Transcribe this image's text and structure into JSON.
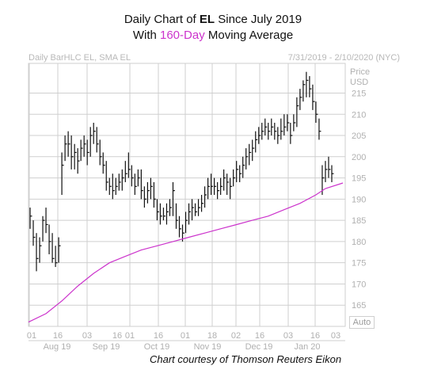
{
  "title": {
    "line1_prefix": "Daily Chart of ",
    "ticker": "EL",
    "line1_suffix": " Since July 2019",
    "line2_prefix": "With ",
    "line2_highlight": "160-Day",
    "line2_suffix": " Moving Average"
  },
  "header": {
    "left": "Daily BarHLC EL, SMA EL",
    "right": "7/31/2019 - 2/10/2020 (NYC)"
  },
  "axis": {
    "price_label": "Price",
    "currency_label": "USD",
    "auto_button": "Auto"
  },
  "credit": "Chart courtesy of Thomson Reuters Eikon",
  "colors": {
    "bars": "#111111",
    "sma": "#cc33cc",
    "grid": "#cfcfcf",
    "axis_text": "#b0b0b0"
  },
  "chart_data": {
    "type": "line",
    "title": "Daily Chart of EL Since July 2019 With 160-Day Moving Average",
    "bar_type": "BarHLC",
    "y_axis_side": "right",
    "ylim": [
      160,
      222
    ],
    "yticks": [
      165,
      170,
      175,
      180,
      185,
      190,
      195,
      200,
      205,
      210,
      215
    ],
    "x_day_ticks": [
      "01",
      "16",
      "03",
      "16",
      "01",
      "16",
      "01",
      "18",
      "02",
      "16",
      "03",
      "16",
      "03"
    ],
    "x_month_labels": [
      "Aug 19",
      "Sep 19",
      "Oct 19",
      "Nov 19",
      "Dec 19",
      "Jan 20"
    ],
    "grid": true,
    "series": [
      {
        "name": "EL",
        "kind": "hlc_bars",
        "values": [
          {
            "h": 188,
            "l": 183,
            "c": 186
          },
          {
            "h": 185,
            "l": 179,
            "c": 181
          },
          {
            "h": 182,
            "l": 173,
            "c": 176
          },
          {
            "h": 181,
            "l": 175,
            "c": 179
          },
          {
            "h": 186,
            "l": 180,
            "c": 185
          },
          {
            "h": 188,
            "l": 182,
            "c": 184
          },
          {
            "h": 184,
            "l": 177,
            "c": 180
          },
          {
            "h": 182,
            "l": 175,
            "c": 176
          },
          {
            "h": 179,
            "l": 174,
            "c": 175
          },
          {
            "h": 181,
            "l": 175,
            "c": 179
          },
          {
            "h": 201,
            "l": 191,
            "c": 198
          },
          {
            "h": 205,
            "l": 199,
            "c": 203
          },
          {
            "h": 206,
            "l": 200,
            "c": 203
          },
          {
            "h": 205,
            "l": 197,
            "c": 200
          },
          {
            "h": 203,
            "l": 197,
            "c": 201
          },
          {
            "h": 202,
            "l": 196,
            "c": 199
          },
          {
            "h": 204,
            "l": 199,
            "c": 202
          },
          {
            "h": 205,
            "l": 200,
            "c": 203
          },
          {
            "h": 204,
            "l": 198,
            "c": 201
          },
          {
            "h": 207,
            "l": 200,
            "c": 205
          },
          {
            "h": 208,
            "l": 203,
            "c": 206
          },
          {
            "h": 207,
            "l": 201,
            "c": 203
          },
          {
            "h": 204,
            "l": 198,
            "c": 200
          },
          {
            "h": 201,
            "l": 196,
            "c": 198
          },
          {
            "h": 199,
            "l": 192,
            "c": 194
          },
          {
            "h": 195,
            "l": 191,
            "c": 193
          },
          {
            "h": 196,
            "l": 190,
            "c": 192
          },
          {
            "h": 195,
            "l": 191,
            "c": 193
          },
          {
            "h": 196,
            "l": 192,
            "c": 194
          },
          {
            "h": 197,
            "l": 192,
            "c": 195
          },
          {
            "h": 199,
            "l": 194,
            "c": 196
          },
          {
            "h": 201,
            "l": 195,
            "c": 197
          },
          {
            "h": 198,
            "l": 193,
            "c": 195
          },
          {
            "h": 196,
            "l": 191,
            "c": 193
          },
          {
            "h": 197,
            "l": 193,
            "c": 195
          },
          {
            "h": 197,
            "l": 190,
            "c": 192
          },
          {
            "h": 193,
            "l": 188,
            "c": 190
          },
          {
            "h": 194,
            "l": 189,
            "c": 192
          },
          {
            "h": 195,
            "l": 190,
            "c": 193
          },
          {
            "h": 194,
            "l": 188,
            "c": 190
          },
          {
            "h": 190,
            "l": 185,
            "c": 187
          },
          {
            "h": 189,
            "l": 184,
            "c": 186
          },
          {
            "h": 188,
            "l": 185,
            "c": 186
          },
          {
            "h": 189,
            "l": 184,
            "c": 187
          },
          {
            "h": 190,
            "l": 186,
            "c": 188
          },
          {
            "h": 194,
            "l": 186,
            "c": 192
          },
          {
            "h": 189,
            "l": 183,
            "c": 185
          },
          {
            "h": 186,
            "l": 181,
            "c": 183
          },
          {
            "h": 184,
            "l": 180,
            "c": 182
          },
          {
            "h": 187,
            "l": 182,
            "c": 185
          },
          {
            "h": 189,
            "l": 184,
            "c": 187
          },
          {
            "h": 190,
            "l": 185,
            "c": 188
          },
          {
            "h": 189,
            "l": 186,
            "c": 187
          },
          {
            "h": 190,
            "l": 186,
            "c": 188
          },
          {
            "h": 191,
            "l": 187,
            "c": 189
          },
          {
            "h": 193,
            "l": 188,
            "c": 191
          },
          {
            "h": 195,
            "l": 190,
            "c": 193
          },
          {
            "h": 196,
            "l": 191,
            "c": 193
          },
          {
            "h": 195,
            "l": 191,
            "c": 193
          },
          {
            "h": 194,
            "l": 190,
            "c": 192
          },
          {
            "h": 195,
            "l": 191,
            "c": 193
          },
          {
            "h": 197,
            "l": 192,
            "c": 195
          },
          {
            "h": 196,
            "l": 191,
            "c": 194
          },
          {
            "h": 195,
            "l": 190,
            "c": 193
          },
          {
            "h": 197,
            "l": 193,
            "c": 195
          },
          {
            "h": 199,
            "l": 194,
            "c": 197
          },
          {
            "h": 198,
            "l": 194,
            "c": 196
          },
          {
            "h": 200,
            "l": 195,
            "c": 198
          },
          {
            "h": 202,
            "l": 197,
            "c": 200
          },
          {
            "h": 203,
            "l": 198,
            "c": 201
          },
          {
            "h": 204,
            "l": 199,
            "c": 202
          },
          {
            "h": 206,
            "l": 201,
            "c": 204
          },
          {
            "h": 207,
            "l": 203,
            "c": 205
          },
          {
            "h": 208,
            "l": 204,
            "c": 206
          },
          {
            "h": 209,
            "l": 205,
            "c": 207
          },
          {
            "h": 208,
            "l": 204,
            "c": 206
          },
          {
            "h": 209,
            "l": 205,
            "c": 207
          },
          {
            "h": 208,
            "l": 204,
            "c": 206
          },
          {
            "h": 207,
            "l": 203,
            "c": 205
          },
          {
            "h": 209,
            "l": 204,
            "c": 206
          },
          {
            "h": 210,
            "l": 205,
            "c": 207
          },
          {
            "h": 210,
            "l": 206,
            "c": 208
          },
          {
            "h": 208,
            "l": 203,
            "c": 205
          },
          {
            "h": 210,
            "l": 206,
            "c": 208
          },
          {
            "h": 214,
            "l": 207,
            "c": 212
          },
          {
            "h": 216,
            "l": 211,
            "c": 214
          },
          {
            "h": 218,
            "l": 213,
            "c": 217
          },
          {
            "h": 220,
            "l": 214,
            "c": 218
          },
          {
            "h": 219,
            "l": 214,
            "c": 216
          },
          {
            "h": 217,
            "l": 211,
            "c": 213
          },
          {
            "h": 213,
            "l": 208,
            "c": 210
          },
          {
            "h": 209,
            "l": 204,
            "c": 206
          },
          {
            "h": 198,
            "l": 191,
            "c": 195
          },
          {
            "h": 199,
            "l": 194,
            "c": 197
          },
          {
            "h": 200,
            "l": 195,
            "c": 197
          },
          {
            "h": 198,
            "l": 194,
            "c": 196
          }
        ]
      },
      {
        "name": "SMA",
        "kind": "line",
        "values": [
          {
            "i": 0,
            "v": 161
          },
          {
            "i": 5,
            "v": 163
          },
          {
            "i": 10,
            "v": 166
          },
          {
            "i": 15,
            "v": 169.5
          },
          {
            "i": 20,
            "v": 172.5
          },
          {
            "i": 25,
            "v": 175
          },
          {
            "i": 30,
            "v": 176.5
          },
          {
            "i": 35,
            "v": 178
          },
          {
            "i": 40,
            "v": 179
          },
          {
            "i": 45,
            "v": 180
          },
          {
            "i": 50,
            "v": 181
          },
          {
            "i": 55,
            "v": 182
          },
          {
            "i": 60,
            "v": 183
          },
          {
            "i": 65,
            "v": 184
          },
          {
            "i": 70,
            "v": 185
          },
          {
            "i": 75,
            "v": 186
          },
          {
            "i": 80,
            "v": 187.5
          },
          {
            "i": 85,
            "v": 189
          },
          {
            "i": 90,
            "v": 191
          },
          {
            "i": 93,
            "v": 192.5
          },
          {
            "i": 97,
            "v": 193.8
          }
        ]
      }
    ]
  }
}
